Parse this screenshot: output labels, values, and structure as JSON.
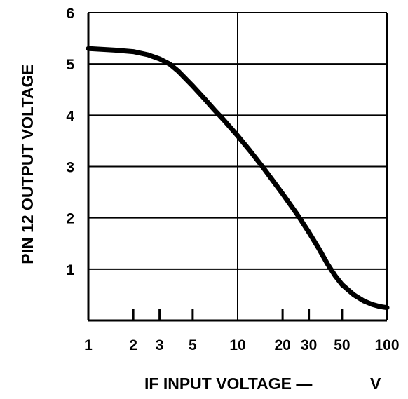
{
  "chart_data": {
    "type": "line",
    "title": "",
    "xlabel": "IF INPUT VOLTAGE —",
    "xlabel_unit": "V",
    "ylabel": "PIN 12 OUTPUT VOLTAGE",
    "x_scale": "log",
    "xlim": [
      1,
      100
    ],
    "ylim": [
      0,
      6
    ],
    "x_ticks": [
      1,
      2,
      3,
      5,
      10,
      20,
      30,
      50,
      100
    ],
    "x_tick_labels": [
      "1",
      "2",
      "3",
      "5",
      "10",
      "20",
      "30",
      "50",
      "100"
    ],
    "y_ticks": [
      1,
      2,
      3,
      4,
      5,
      6
    ],
    "y_tick_labels": [
      "1",
      "2",
      "3",
      "4",
      "5",
      "6"
    ],
    "grid": true,
    "series": [
      {
        "color": "#000000",
        "x": [
          1,
          1.5,
          2,
          2.5,
          3,
          3.5,
          4,
          5,
          6,
          7,
          8,
          10,
          12,
          15,
          20,
          25,
          30,
          35,
          40,
          45,
          50,
          60,
          70,
          80,
          90,
          100
        ],
        "y": [
          5.3,
          5.27,
          5.24,
          5.18,
          5.1,
          5.0,
          4.86,
          4.57,
          4.32,
          4.1,
          3.92,
          3.6,
          3.32,
          2.96,
          2.47,
          2.07,
          1.72,
          1.4,
          1.1,
          0.87,
          0.7,
          0.5,
          0.38,
          0.31,
          0.27,
          0.25
        ]
      }
    ]
  }
}
